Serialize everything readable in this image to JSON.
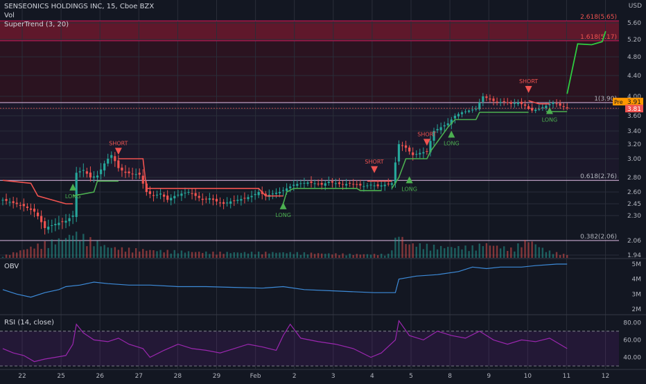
{
  "header": {
    "symbol": "SENSEONICS HOLDINGS INC, 15, Cboe BZX",
    "vol_label": "Vol",
    "supertrend_label": "SuperTrend (3, 20)"
  },
  "currency_label": "USD",
  "price_tags": {
    "pre_label": "Pre",
    "pre_value": "3.91",
    "last_value": "3.81"
  },
  "colors": {
    "background": "#131722",
    "grid": "#2a2e39",
    "up": "#26a69a",
    "down": "#ef5350",
    "supertrend_up": "#4caf50",
    "supertrend_down": "#f05350",
    "obv": "#3d8bd9",
    "rsi": "#9c27b0",
    "fib_line": "#e1bee7",
    "pre": "#ff9800",
    "projection": "#2ecc40"
  },
  "chart_data": [
    {
      "type": "candlestick",
      "title": "SENSEONICS HOLDINGS INC, 15, Cboe BZX",
      "x_ticks": [
        "22",
        "25",
        "26",
        "27",
        "28",
        "29",
        "Feb",
        "2",
        "3",
        "4",
        "5",
        "8",
        "9",
        "10",
        "11",
        "12"
      ],
      "y_ticks": [
        1.94,
        2.06,
        2.3,
        2.45,
        2.6,
        2.8,
        3.0,
        3.2,
        3.4,
        3.6,
        3.8,
        4.0,
        4.4,
        4.8,
        5.2,
        5.6
      ],
      "fib_levels": [
        {
          "label": "0.382(2.06)",
          "value": 2.06
        },
        {
          "label": "0.618(2.76)",
          "value": 2.76
        },
        {
          "label": "1(3.90)",
          "value": 3.9
        },
        {
          "label": "1.618(5.17)",
          "value": 5.17
        },
        {
          "label": "2.618(5.65)",
          "value": 5.65
        }
      ],
      "close_path": [
        [
          0,
          2.5
        ],
        [
          3,
          2.46
        ],
        [
          6,
          2.42
        ],
        [
          9,
          2.35
        ],
        [
          12,
          2.18
        ],
        [
          15,
          2.22
        ],
        [
          18,
          2.25
        ],
        [
          20,
          2.3
        ],
        [
          21,
          2.85
        ],
        [
          23,
          2.88
        ],
        [
          25,
          2.8
        ],
        [
          27,
          2.82
        ],
        [
          29,
          2.95
        ],
        [
          31,
          3.05
        ],
        [
          33,
          2.9
        ],
        [
          35,
          2.85
        ],
        [
          37,
          2.84
        ],
        [
          39,
          2.83
        ],
        [
          41,
          2.6
        ],
        [
          43,
          2.55
        ],
        [
          45,
          2.58
        ],
        [
          47,
          2.5
        ],
        [
          49,
          2.55
        ],
        [
          51,
          2.58
        ],
        [
          53,
          2.6
        ],
        [
          55,
          2.55
        ],
        [
          57,
          2.5
        ],
        [
          59,
          2.52
        ],
        [
          61,
          2.48
        ],
        [
          63,
          2.45
        ],
        [
          65,
          2.48
        ],
        [
          67,
          2.5
        ],
        [
          69,
          2.52
        ],
        [
          71,
          2.55
        ],
        [
          73,
          2.6
        ],
        [
          75,
          2.55
        ],
        [
          77,
          2.58
        ],
        [
          79,
          2.6
        ],
        [
          81,
          2.65
        ],
        [
          83,
          2.7
        ],
        [
          85,
          2.72
        ],
        [
          87,
          2.73
        ],
        [
          89,
          2.72
        ],
        [
          91,
          2.7
        ],
        [
          93,
          2.74
        ],
        [
          95,
          2.72
        ],
        [
          97,
          2.7
        ],
        [
          99,
          2.72
        ],
        [
          101,
          2.7
        ],
        [
          103,
          2.68
        ],
        [
          105,
          2.7
        ],
        [
          107,
          2.68
        ],
        [
          109,
          2.7
        ],
        [
          111,
          2.72
        ],
        [
          113,
          3.2
        ],
        [
          115,
          3.15
        ],
        [
          117,
          3.05
        ],
        [
          119,
          3.08
        ],
        [
          121,
          3.1
        ],
        [
          123,
          3.4
        ],
        [
          125,
          3.45
        ],
        [
          127,
          3.5
        ],
        [
          129,
          3.6
        ],
        [
          131,
          3.7
        ],
        [
          133,
          3.75
        ],
        [
          135,
          3.8
        ],
        [
          137,
          4.0
        ],
        [
          139,
          3.95
        ],
        [
          141,
          3.9
        ],
        [
          143,
          3.92
        ],
        [
          145,
          3.88
        ],
        [
          147,
          3.9
        ],
        [
          149,
          3.85
        ],
        [
          151,
          3.75
        ],
        [
          153,
          3.8
        ],
        [
          155,
          3.85
        ],
        [
          157,
          3.9
        ],
        [
          159,
          3.85
        ],
        [
          161,
          3.81
        ]
      ],
      "volume_path": [
        [
          0,
          0.05
        ],
        [
          10,
          0.35
        ],
        [
          18,
          0.55
        ],
        [
          20,
          0.7
        ],
        [
          30,
          0.3
        ],
        [
          35,
          0.25
        ],
        [
          45,
          0.2
        ],
        [
          60,
          0.15
        ],
        [
          80,
          0.15
        ],
        [
          100,
          0.1
        ],
        [
          110,
          0.1
        ],
        [
          113,
          0.7
        ],
        [
          115,
          0.4
        ],
        [
          125,
          0.3
        ],
        [
          135,
          0.3
        ],
        [
          137,
          0.4
        ],
        [
          145,
          0.25
        ],
        [
          150,
          0.5
        ],
        [
          155,
          0.2
        ],
        [
          160,
          0.1
        ]
      ],
      "supertrend_segments": [
        {
          "trend": "down",
          "points": [
            [
              0,
              2.76
            ],
            [
              8,
              2.72
            ],
            [
              10,
              2.55
            ],
            [
              18,
              2.45
            ],
            [
              20,
              2.45
            ]
          ]
        },
        {
          "trend": "up",
          "points": [
            [
              20,
              2.55
            ],
            [
              26,
              2.6
            ],
            [
              27,
              2.75
            ],
            [
              33,
              2.75
            ]
          ]
        },
        {
          "trend": "down",
          "points": [
            [
              33,
              3.0
            ],
            [
              40,
              3.0
            ],
            [
              41,
              2.65
            ],
            [
              73,
              2.65
            ],
            [
              75,
              2.55
            ],
            [
              80,
              2.55
            ]
          ]
        },
        {
          "trend": "up",
          "points": [
            [
              80,
              2.45
            ],
            [
              81,
              2.6
            ],
            [
              83,
              2.65
            ],
            [
              101,
              2.65
            ],
            [
              102,
              2.62
            ],
            [
              108,
              2.62
            ]
          ]
        },
        {
          "trend": "down",
          "points": [
            [
              104,
              2.75
            ],
            [
              111,
              2.75
            ]
          ]
        },
        {
          "trend": "up",
          "points": [
            [
              111,
              2.65
            ],
            [
              113,
              2.8
            ],
            [
              115,
              3.0
            ],
            [
              121,
              3.0
            ],
            [
              122,
              3.1
            ],
            [
              127,
              3.45
            ],
            [
              129,
              3.55
            ],
            [
              135,
              3.55
            ],
            [
              136,
              3.7
            ],
            [
              150,
              3.7
            ]
          ]
        },
        {
          "trend": "down",
          "points": [
            [
              150,
              3.93
            ],
            [
              153,
              3.88
            ],
            [
              156,
              3.88
            ]
          ]
        },
        {
          "trend": "up",
          "points": [
            [
              155,
              3.72
            ],
            [
              161,
              3.72
            ]
          ]
        }
      ],
      "projection": [
        [
          161,
          4.05
        ],
        [
          164,
          5.1
        ],
        [
          168,
          5.08
        ],
        [
          171,
          5.15
        ],
        [
          172,
          5.4
        ]
      ],
      "signals": [
        {
          "label": "LONG",
          "x": 20,
          "y": 2.62,
          "dir": "up"
        },
        {
          "label": "SHORT",
          "x": 33,
          "y": 3.15,
          "dir": "down"
        },
        {
          "label": "LONG",
          "x": 80,
          "y": 2.38,
          "dir": "up"
        },
        {
          "label": "SHORT",
          "x": 106,
          "y": 2.92,
          "dir": "down"
        },
        {
          "label": "LONG",
          "x": 116,
          "y": 2.72,
          "dir": "up"
        },
        {
          "label": "SHORT",
          "x": 121,
          "y": 3.28,
          "dir": "down"
        },
        {
          "label": "LONG",
          "x": 128,
          "y": 3.3,
          "dir": "up"
        },
        {
          "label": "SHORT",
          "x": 150,
          "y": 4.2,
          "dir": "down"
        },
        {
          "label": "LONG",
          "x": 156,
          "y": 3.65,
          "dir": "up"
        }
      ]
    },
    {
      "type": "line",
      "title": "OBV",
      "y_ticks": [
        "5M",
        "4M",
        "3M",
        "2M"
      ],
      "series": [
        {
          "name": "OBV",
          "values": [
            [
              0,
              3.3
            ],
            [
              4,
              3.0
            ],
            [
              8,
              2.8
            ],
            [
              12,
              3.1
            ],
            [
              16,
              3.3
            ],
            [
              18,
              3.5
            ],
            [
              22,
              3.6
            ],
            [
              26,
              3.8
            ],
            [
              30,
              3.7
            ],
            [
              36,
              3.6
            ],
            [
              42,
              3.6
            ],
            [
              50,
              3.5
            ],
            [
              58,
              3.5
            ],
            [
              66,
              3.45
            ],
            [
              74,
              3.4
            ],
            [
              80,
              3.5
            ],
            [
              86,
              3.3
            ],
            [
              96,
              3.2
            ],
            [
              106,
              3.1
            ],
            [
              112,
              3.1
            ],
            [
              113,
              4.0
            ],
            [
              118,
              4.2
            ],
            [
              124,
              4.3
            ],
            [
              130,
              4.5
            ],
            [
              134,
              4.8
            ],
            [
              138,
              4.7
            ],
            [
              142,
              4.8
            ],
            [
              148,
              4.8
            ],
            [
              152,
              4.9
            ],
            [
              158,
              5.0
            ],
            [
              161,
              5.0
            ]
          ]
        }
      ]
    },
    {
      "type": "line",
      "title": "RSI (14, close)",
      "y_ticks": [
        "80.00",
        "60.00",
        "40.00"
      ],
      "series": [
        {
          "name": "RSI (14, close)",
          "values": [
            [
              0,
              50
            ],
            [
              3,
              45
            ],
            [
              6,
              42
            ],
            [
              9,
              35
            ],
            [
              12,
              38
            ],
            [
              15,
              40
            ],
            [
              18,
              42
            ],
            [
              20,
              55
            ],
            [
              21,
              78
            ],
            [
              23,
              68
            ],
            [
              26,
              60
            ],
            [
              30,
              58
            ],
            [
              33,
              62
            ],
            [
              36,
              55
            ],
            [
              40,
              50
            ],
            [
              42,
              40
            ],
            [
              46,
              48
            ],
            [
              50,
              55
            ],
            [
              54,
              50
            ],
            [
              58,
              48
            ],
            [
              62,
              45
            ],
            [
              66,
              50
            ],
            [
              70,
              55
            ],
            [
              74,
              52
            ],
            [
              78,
              48
            ],
            [
              80,
              65
            ],
            [
              82,
              78
            ],
            [
              85,
              62
            ],
            [
              90,
              58
            ],
            [
              95,
              55
            ],
            [
              100,
              50
            ],
            [
              105,
              40
            ],
            [
              108,
              45
            ],
            [
              112,
              60
            ],
            [
              113,
              82
            ],
            [
              116,
              65
            ],
            [
              120,
              60
            ],
            [
              124,
              70
            ],
            [
              128,
              65
            ],
            [
              132,
              62
            ],
            [
              136,
              70
            ],
            [
              140,
              60
            ],
            [
              144,
              55
            ],
            [
              148,
              60
            ],
            [
              152,
              58
            ],
            [
              156,
              62
            ],
            [
              161,
              50
            ]
          ]
        }
      ]
    }
  ]
}
